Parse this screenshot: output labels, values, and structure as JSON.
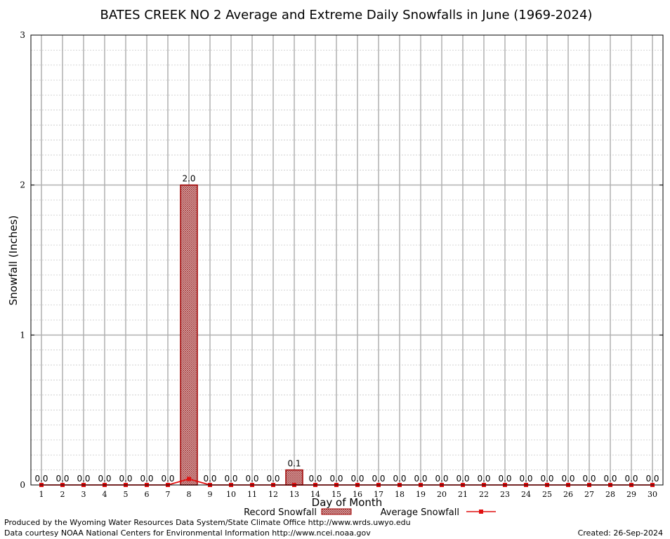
{
  "chart_data": {
    "type": "bar",
    "title": "BATES CREEK NO 2 Average and Extreme Daily Snowfalls in June (1969-2024)",
    "xlabel": "Day of Month",
    "ylabel": "Snowfall (Inches)",
    "ylim": [
      0,
      3
    ],
    "yticks": [
      "0",
      "1",
      "2",
      "3"
    ],
    "categories": [
      "1",
      "2",
      "3",
      "4",
      "5",
      "6",
      "7",
      "8",
      "9",
      "10",
      "11",
      "12",
      "13",
      "14",
      "15",
      "16",
      "17",
      "18",
      "19",
      "20",
      "21",
      "22",
      "23",
      "24",
      "25",
      "26",
      "27",
      "28",
      "29",
      "30"
    ],
    "series": [
      {
        "name": "Record Snowfall",
        "kind": "bar",
        "values": [
          0,
          0,
          0,
          0,
          0,
          0,
          0,
          2.0,
          0,
          0,
          0,
          0,
          0.1,
          0,
          0,
          0,
          0,
          0,
          0,
          0,
          0,
          0,
          0,
          0,
          0,
          0,
          0,
          0,
          0,
          0
        ],
        "labels": [
          "0.0",
          "0.0",
          "0.0",
          "0.0",
          "0.0",
          "0.0",
          "0.0",
          "2.0",
          "0.0",
          "0.0",
          "0.0",
          "0.0",
          "0.1",
          "0.0",
          "0.0",
          "0.0",
          "0.0",
          "0.0",
          "0.0",
          "0.0",
          "0.0",
          "0.0",
          "0.0",
          "0.0",
          "0.0",
          "0.0",
          "0.0",
          "0.0",
          "0.0",
          "0.0"
        ]
      },
      {
        "name": "Average Snowfall",
        "kind": "line",
        "values": [
          0,
          0,
          0,
          0,
          0,
          0,
          0,
          0.04,
          0,
          0,
          0,
          0,
          0,
          0,
          0,
          0,
          0,
          0,
          0,
          0,
          0,
          0,
          0,
          0,
          0,
          0,
          0,
          0,
          0,
          0
        ]
      }
    ],
    "grid": true,
    "legend": "bottom",
    "colors": {
      "bar_fill": "#d8b4b4",
      "bar_stroke": "#a00000",
      "line": "#e01010",
      "grid_major": "#b0b0b0",
      "grid_minor": "#c8c8c8"
    }
  },
  "footer": {
    "left_line1": "Produced by the Wyoming Water Resources Data System/State Climate Office http://www.wrds.uwyo.edu",
    "left_line2": "Data courtesy NOAA National Centers for Environmental Information http://www.ncei.noaa.gov",
    "created": "Created: 26-Sep-2024"
  }
}
